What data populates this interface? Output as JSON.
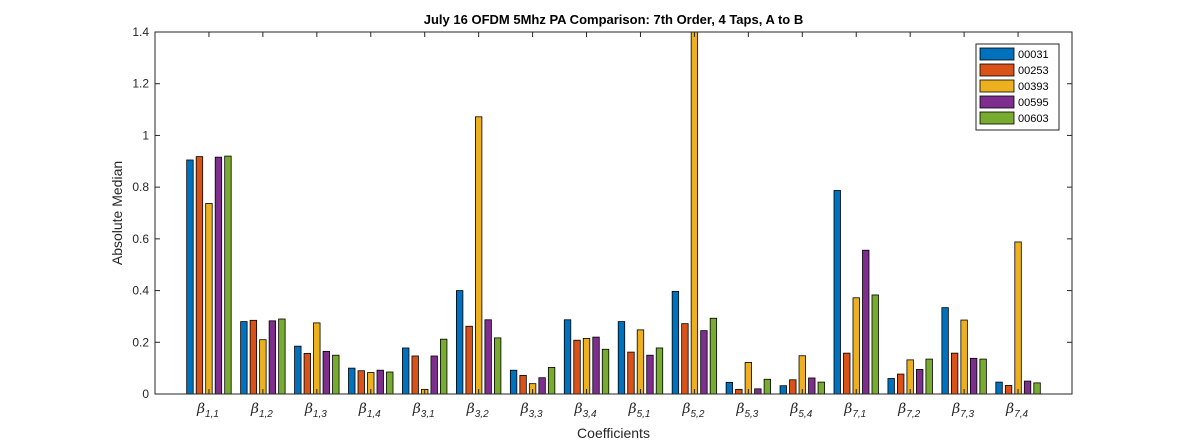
{
  "chart_data": {
    "type": "bar",
    "title": "July 16 OFDM 5Mhz PA Comparison: 7th Order, 4 Taps, A to B",
    "xlabel": "Coefficients",
    "ylabel": "Absolute Median",
    "ylim": [
      0,
      1.4
    ],
    "yticks": [
      "0",
      "0.2",
      "0.4",
      "0.6",
      "0.8",
      "1",
      "1.2",
      "1.4"
    ],
    "ytick_values": [
      0,
      0.2,
      0.4,
      0.6,
      0.8,
      1,
      1.2,
      1.4
    ],
    "category_symbol": "β",
    "categories": [
      "1,1",
      "1,2",
      "1,3",
      "1,4",
      "3,1",
      "3,2",
      "3,3",
      "3,4",
      "5,1",
      "5,2",
      "5,3",
      "5,4",
      "7,1",
      "7,2",
      "7,3",
      "7,4"
    ],
    "legend_position": "top-right",
    "grid": false,
    "series": [
      {
        "name": "00031",
        "color": "#0072BD",
        "values": [
          0.905,
          0.28,
          0.185,
          0.1,
          0.178,
          0.4,
          0.092,
          0.287,
          0.28,
          0.397,
          0.045,
          0.032,
          0.787,
          0.06,
          0.334,
          0.046
        ]
      },
      {
        "name": "00253",
        "color": "#D95319",
        "values": [
          0.918,
          0.285,
          0.157,
          0.09,
          0.147,
          0.262,
          0.072,
          0.208,
          0.162,
          0.272,
          0.018,
          0.055,
          0.158,
          0.077,
          0.158,
          0.033
        ]
      },
      {
        "name": "00393",
        "color": "#EDB120",
        "values": [
          0.737,
          0.21,
          0.275,
          0.083,
          0.018,
          1.072,
          0.04,
          0.215,
          0.248,
          1.4,
          0.122,
          0.148,
          0.372,
          0.132,
          0.286,
          0.588
        ]
      },
      {
        "name": "00595",
        "color": "#7E2F8E",
        "values": [
          0.916,
          0.283,
          0.165,
          0.092,
          0.147,
          0.287,
          0.063,
          0.22,
          0.15,
          0.245,
          0.02,
          0.062,
          0.556,
          0.095,
          0.138,
          0.05
        ]
      },
      {
        "name": "00603",
        "color": "#77AC30",
        "values": [
          0.92,
          0.29,
          0.15,
          0.085,
          0.212,
          0.217,
          0.103,
          0.173,
          0.178,
          0.293,
          0.057,
          0.046,
          0.383,
          0.135,
          0.135,
          0.043
        ]
      }
    ]
  }
}
